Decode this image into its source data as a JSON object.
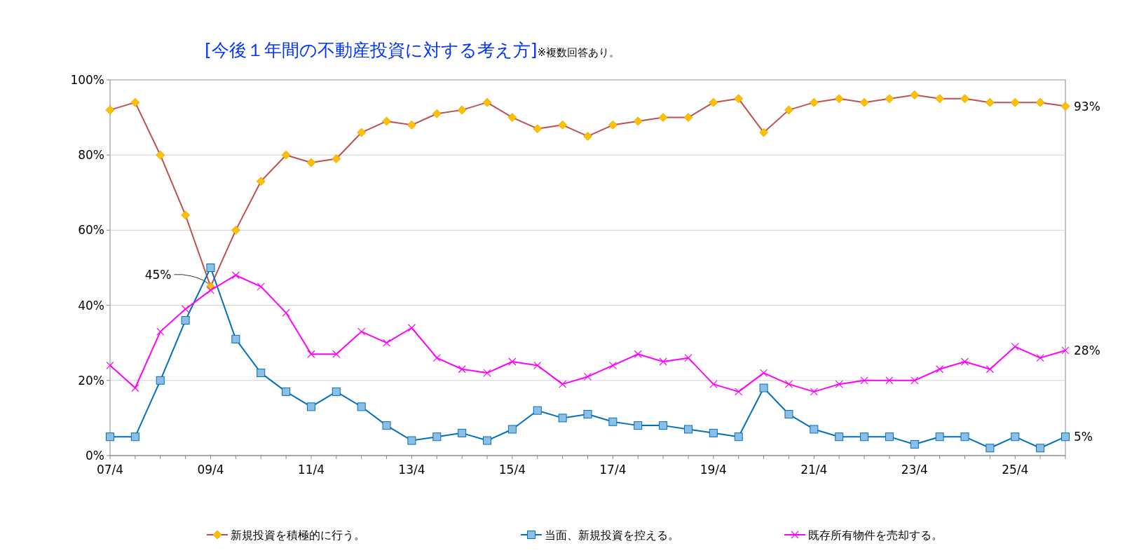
{
  "chart_data": {
    "type": "line",
    "title": "[今後１年間の不動産投資に対する考え方]",
    "subtitle": "※複数回答あり。",
    "categories": [
      "07/4",
      null,
      null,
      null,
      "09/4",
      null,
      null,
      null,
      "11/4",
      null,
      null,
      null,
      "13/4",
      null,
      null,
      null,
      "15/4",
      null,
      null,
      null,
      "17/4",
      null,
      null,
      null,
      "19/4",
      null,
      null,
      null,
      "21/4",
      null,
      null,
      null,
      "23/4",
      null,
      null,
      null,
      "25/4",
      null,
      null
    ],
    "ylim": [
      0,
      100
    ],
    "yticks": [
      {
        "value": 0,
        "label": "0%"
      },
      {
        "value": 20,
        "label": "20%"
      },
      {
        "value": 40,
        "label": "40%"
      },
      {
        "value": 60,
        "label": "60%"
      },
      {
        "value": 80,
        "label": "80%"
      },
      {
        "value": 100,
        "label": "100%"
      }
    ],
    "grid": "y",
    "legend": "bottom",
    "series": [
      {
        "name": "新規投資を積極的に行う。",
        "color": "#c0504d",
        "marker": "diamond",
        "values": [
          92,
          94,
          80,
          64,
          45,
          60,
          73,
          80,
          78,
          79,
          86,
          89,
          88,
          91,
          92,
          94,
          90,
          87,
          88,
          85,
          88,
          89,
          90,
          90,
          94,
          95,
          86,
          92,
          94,
          95,
          94,
          95,
          96,
          95,
          95,
          94,
          94,
          94,
          93
        ],
        "value_labels": [
          null,
          null,
          null,
          null,
          "45%",
          null,
          null,
          null,
          null,
          null,
          null,
          null,
          null,
          null,
          null,
          null,
          null,
          null,
          null,
          null,
          null,
          null,
          null,
          null,
          null,
          null,
          null,
          null,
          null,
          null,
          null,
          null,
          null,
          null,
          null,
          null,
          null,
          null,
          "93%"
        ]
      },
      {
        "name": "当面、新規投資を控える。",
        "color": "#0070c0",
        "marker": "square",
        "values": [
          5,
          5,
          20,
          36,
          50,
          31,
          22,
          17,
          13,
          17,
          13,
          8,
          4,
          5,
          6,
          4,
          7,
          12,
          10,
          11,
          9,
          8,
          8,
          7,
          6,
          5,
          18,
          11,
          7,
          5,
          5,
          5,
          3,
          5,
          5,
          2,
          5,
          2,
          5
        ],
        "value_labels": [
          null,
          null,
          null,
          null,
          null,
          null,
          null,
          null,
          null,
          null,
          null,
          null,
          null,
          null,
          null,
          null,
          null,
          null,
          null,
          null,
          null,
          null,
          null,
          null,
          null,
          null,
          null,
          null,
          null,
          null,
          null,
          null,
          null,
          null,
          null,
          null,
          null,
          null,
          "5%"
        ]
      },
      {
        "name": "既存所有物件を売却する。",
        "color": "#ff00ff",
        "marker": "cross",
        "values": [
          24,
          18,
          33,
          39,
          44,
          48,
          45,
          38,
          27,
          27,
          33,
          30,
          34,
          26,
          23,
          22,
          25,
          24,
          19,
          21,
          24,
          27,
          25,
          26,
          19,
          17,
          22,
          19,
          17,
          19,
          20,
          20,
          20,
          23,
          25,
          23,
          29,
          26,
          28
        ],
        "value_labels": [
          null,
          null,
          null,
          null,
          null,
          null,
          null,
          null,
          null,
          null,
          null,
          null,
          null,
          null,
          null,
          null,
          null,
          null,
          null,
          null,
          null,
          null,
          null,
          null,
          null,
          null,
          null,
          null,
          null,
          null,
          null,
          null,
          null,
          null,
          null,
          null,
          null,
          null,
          "28%"
        ]
      }
    ]
  }
}
